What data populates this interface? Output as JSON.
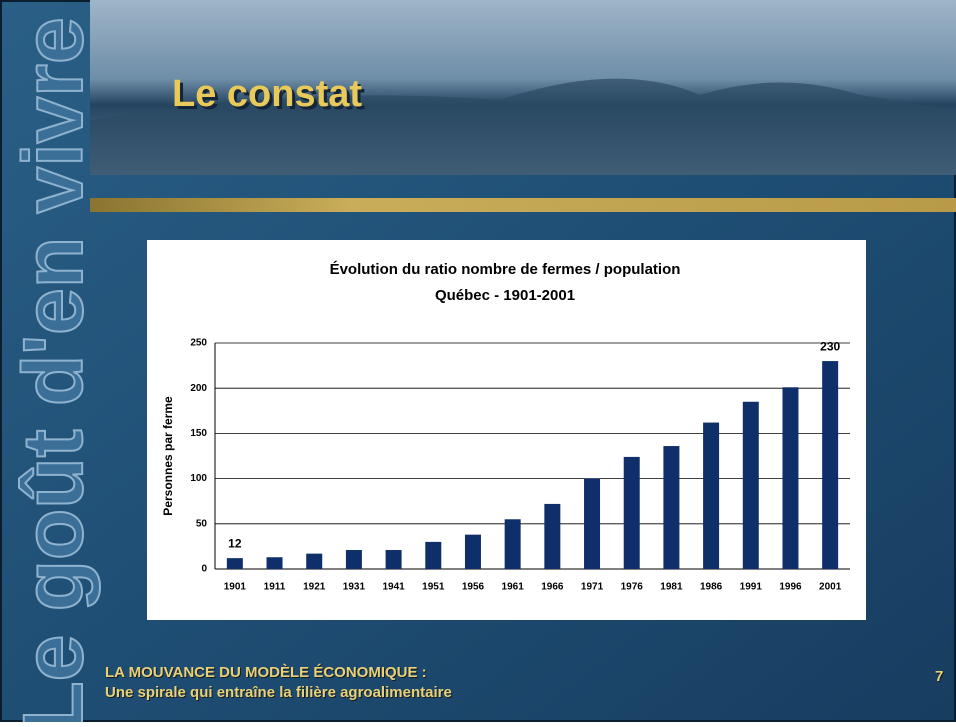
{
  "slide": {
    "side_text": "Le goût d'en vivre",
    "title": "Le constat",
    "footer_line1": "LA MOUVANCE DU MODÈLE ÉCONOMIQUE :",
    "footer_line2": "Une spirale qui entraîne la filière agroalimentaire",
    "page_number": "7"
  },
  "chart_data": {
    "type": "bar",
    "title": "Évolution du ratio nombre de fermes / population",
    "subtitle": "Québec - 1901-2001",
    "y_label": "Personnes par ferme",
    "categories": [
      "1901",
      "1911",
      "1921",
      "1931",
      "1941",
      "1951",
      "1956",
      "1961",
      "1966",
      "1971",
      "1976",
      "1981",
      "1986",
      "1991",
      "1996",
      "2001"
    ],
    "values": [
      12,
      13,
      17,
      21,
      21,
      30,
      38,
      55,
      72,
      100,
      124,
      136,
      162,
      185,
      201,
      230
    ],
    "value_labels": [
      "12",
      null,
      null,
      null,
      null,
      null,
      null,
      null,
      null,
      null,
      null,
      null,
      null,
      null,
      null,
      "230"
    ],
    "color": "#0f2f6a",
    "ylim": [
      0,
      250
    ],
    "yticks": [
      0,
      50,
      100,
      150,
      200,
      250
    ],
    "grid": true
  }
}
